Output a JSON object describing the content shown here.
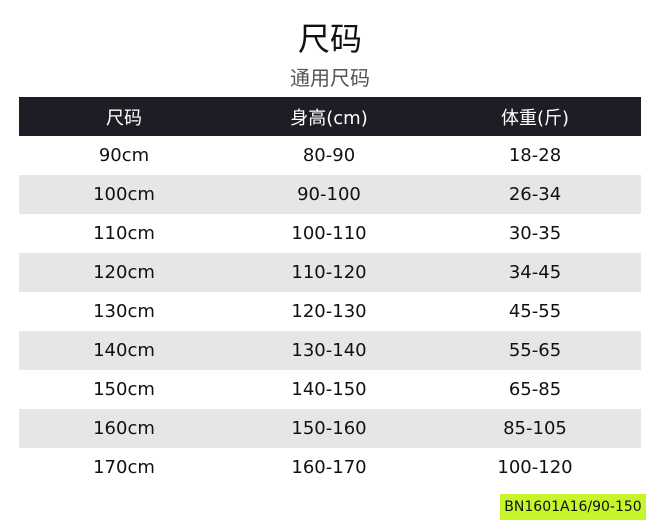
{
  "title": "尺码",
  "subtitle": "通用尺码",
  "table": {
    "headers": [
      "尺码",
      "身高(cm)",
      "体重(斤)"
    ],
    "rows": [
      [
        "90cm",
        "80-90",
        "18-28"
      ],
      [
        "100cm",
        "90-100",
        "26-34"
      ],
      [
        "110cm",
        "100-110",
        "30-35"
      ],
      [
        "120cm",
        "110-120",
        "34-45"
      ],
      [
        "130cm",
        "120-130",
        "45-55"
      ],
      [
        "140cm",
        "130-140",
        "55-65"
      ],
      [
        "150cm",
        "140-150",
        "65-85"
      ],
      [
        "160cm",
        "150-160",
        "85-105"
      ],
      [
        "170cm",
        "160-170",
        "100-120"
      ]
    ]
  },
  "tag": "BN1601A16/90-150",
  "colors": {
    "header_bg": "#1c1d25",
    "alt_row": "#e6e6e6",
    "tag_bg": "#c6f52c"
  }
}
